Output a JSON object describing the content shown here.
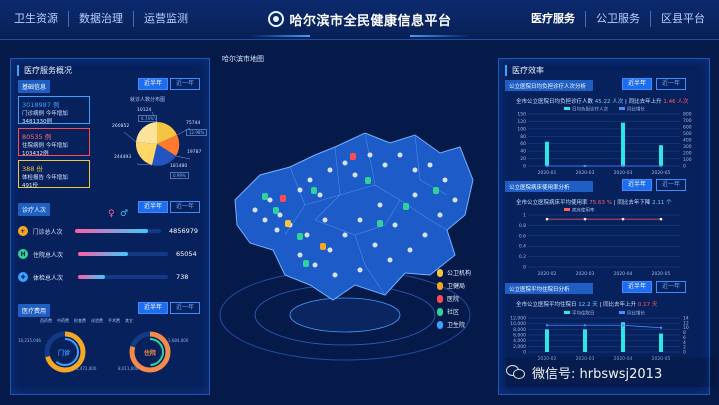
{
  "header": {
    "title": "哈尔滨市全民健康信息平台",
    "nav_left": [
      "卫生资源",
      "数据治理",
      "运营监测"
    ],
    "nav_right": [
      "医疗服务",
      "公卫服务",
      "区县平台"
    ],
    "active_nav": "医疗服务"
  },
  "left_panel": {
    "title": "医疗服务概况",
    "basic_info": {
      "label": "基础信息",
      "btn_half_year": "近半年",
      "btn_one_year": "近一年",
      "stats": [
        {
          "number": "3018987 例",
          "line1": "门诊病例 今年增加",
          "line2": "3481330例",
          "color": "#3ea0ff"
        },
        {
          "number": "80535 例",
          "line1": "住院病例 今年增加",
          "line2": "103432例",
          "color": "#ff4d4f"
        },
        {
          "number": "388 份",
          "line1": "体检报告 今年增加",
          "line2": "491份",
          "color": "#f5c542"
        }
      ],
      "pie_caption": "就诊人数分布图",
      "pie_labels": [
        "10124",
        "75744",
        "260852",
        "244493",
        "19787",
        "181480"
      ],
      "pie_tags": [
        "6.74%",
        "12.98%",
        "0.99%"
      ]
    },
    "visits": {
      "label": "诊疗人次",
      "btn_half_year": "近半年",
      "btn_one_year": "近一年",
      "rows": [
        {
          "label": "门诊总人次",
          "value": "4856979",
          "fraction": 0.85,
          "icon": "+",
          "color": "#f5a623"
        },
        {
          "label": "住院总人次",
          "value": "65054",
          "fraction": 0.55,
          "icon": "H",
          "color": "#2fd39a"
        },
        {
          "label": "体检总人次",
          "value": "738",
          "fraction": 0.3,
          "icon": "✚",
          "color": "#3ea0ff"
        }
      ]
    },
    "costs": {
      "label": "医疗费用",
      "btn_half_year": "近半年",
      "btn_one_year": "近一年",
      "legend": [
        "西药费",
        "中药费",
        "检查费",
        "化验费",
        "手术费",
        "其它"
      ],
      "donuts": [
        {
          "label": "门诊",
          "values": [
            "10,235,046",
            "1,472,000"
          ]
        },
        {
          "label": "住院",
          "values": [
            "8,011,000",
            "1,684,000"
          ]
        }
      ]
    }
  },
  "map": {
    "title": "哈尔滨市地图",
    "legend": [
      {
        "label": "公卫机构",
        "color": "#f5c542"
      },
      {
        "label": "卫健局",
        "color": "#f5a623"
      },
      {
        "label": "医院",
        "color": "#ff4d4f"
      },
      {
        "label": "社区",
        "color": "#2fd39a"
      },
      {
        "label": "卫生院",
        "color": "#3ea0ff"
      }
    ]
  },
  "right_panel": {
    "title": "医疗效率",
    "btn_half_year": "近半年",
    "btn_one_year": "近一年",
    "charts": [
      {
        "head": "公立医院日均负担诊疗人次分析",
        "caption_prefix": "全市公立医院日均负担诊疗人数",
        "caption_value": "45.22 人次",
        "caption_mid": "| 同比去年上升",
        "caption_change": "1.46 人次",
        "series_names": [
          "日均负担诊疗人次",
          "同比增长"
        ]
      },
      {
        "head": "公立医院病床使用率分析",
        "caption_prefix": "全市公立医院病床平均使用率",
        "caption_value": "75.63 %",
        "caption_mid": "| 同比去年下降",
        "caption_change": "2.11 个",
        "series_names": [
          "病床使用率"
        ]
      },
      {
        "head": "公立医院平均住院日分析",
        "caption_prefix": "全市公立医院平均住院日",
        "caption_value": "12.2 天",
        "caption_mid": "| 同比去年上升",
        "caption_change": "0.17 天",
        "series_names": [
          "平均住院日",
          "同比增长"
        ]
      }
    ]
  },
  "chart_data": [
    {
      "type": "bar",
      "categories": [
        "2020-01",
        "2020-03",
        "2020-03",
        "2020-05"
      ],
      "series": [
        {
          "name": "日均负担诊疗人次",
          "values": [
            70,
            2,
            125,
            60
          ]
        },
        {
          "name": "同比增长",
          "values": [
            0,
            0,
            0,
            0
          ]
        }
      ],
      "ylim": [
        0,
        150
      ],
      "ylim_right": [
        0,
        800
      ],
      "y_ticks": [
        "0",
        "20",
        "40",
        "60",
        "80",
        "100",
        "120",
        "150"
      ],
      "y_ticks_right": [
        "0",
        "100",
        "200",
        "300",
        "400",
        "500",
        "600",
        "700",
        "800"
      ]
    },
    {
      "type": "line",
      "categories": [
        "2020-02",
        "2020-03",
        "2020-04",
        "2020-05"
      ],
      "series": [
        {
          "name": "病床使用率",
          "values": [
            0.92,
            0.92,
            0.92,
            0.92
          ]
        }
      ],
      "ylim": [
        0,
        1
      ],
      "y_ticks": [
        "0",
        "0.2",
        "0.4",
        "0.6",
        "0.8",
        "1"
      ]
    },
    {
      "type": "bar",
      "categories": [
        "2020-02",
        "2020-03",
        "2020-04",
        "2020-05"
      ],
      "series": [
        {
          "name": "平均住院日",
          "values": [
            8000,
            8000,
            10500,
            6500
          ]
        },
        {
          "name": "同比增长",
          "values": [
            11,
            11,
            11,
            10
          ]
        }
      ],
      "ylim": [
        0,
        12000
      ],
      "ylim_right": [
        0,
        14
      ],
      "y_ticks": [
        "0",
        "2,000",
        "4,000",
        "6,000",
        "8,000",
        "10,000",
        "12,000"
      ],
      "y_ticks_right": [
        "0",
        "2",
        "4",
        "6",
        "8",
        "10",
        "12",
        "14"
      ]
    }
  ],
  "watermark": "微信号: hrbswsj2013"
}
